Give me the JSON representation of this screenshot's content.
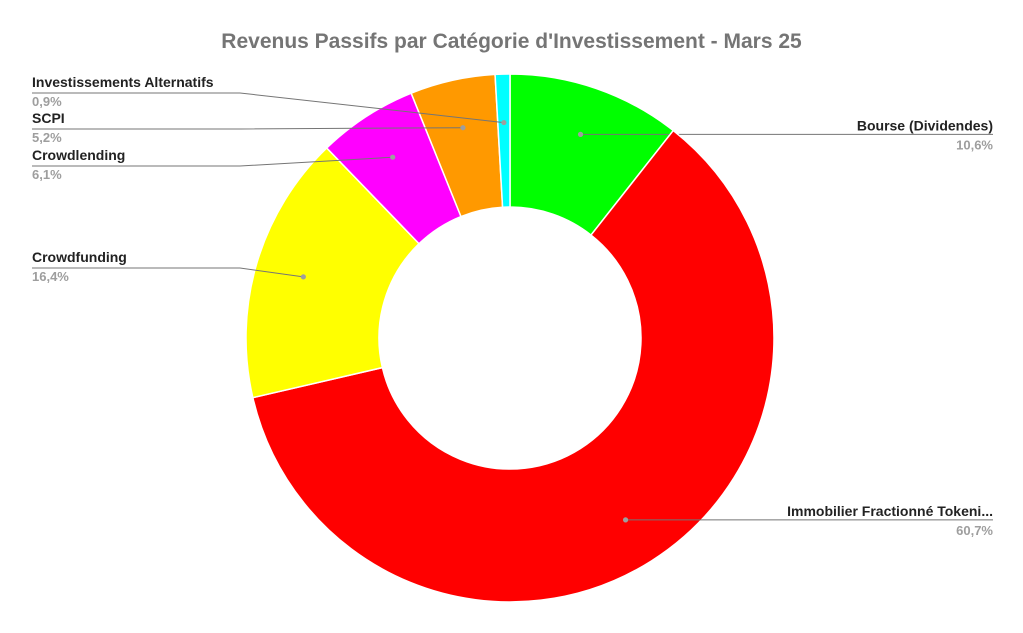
{
  "chart_data": {
    "type": "pie",
    "title": "Revenus Passifs par Catégorie d'Investissement - Mars 25",
    "donut": true,
    "slices": [
      {
        "label": "Bourse (Dividendes)",
        "value": 10.6,
        "value_label": "10,6%",
        "color": "#00ff00"
      },
      {
        "label": "Immobilier Fractionné Tokeni...",
        "value": 60.7,
        "value_label": "60,7%",
        "color": "#ff0000"
      },
      {
        "label": "Crowdfunding",
        "value": 16.4,
        "value_label": "16,4%",
        "color": "#ffff00"
      },
      {
        "label": "Crowdlending",
        "value": 6.1,
        "value_label": "6,1%",
        "color": "#ff00ff"
      },
      {
        "label": "SCPI",
        "value": 5.2,
        "value_label": "5,2%",
        "color": "#ff9900"
      },
      {
        "label": "Investissements Alternatifs",
        "value": 0.9,
        "value_label": "0,9%",
        "color": "#00ffff"
      }
    ]
  }
}
